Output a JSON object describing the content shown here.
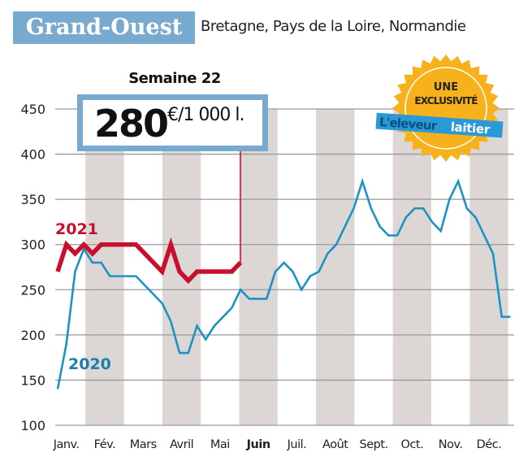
{
  "header": {
    "title": "Grand-Ouest",
    "subtitle": "Bretagne, Pays de la Loire, Normandie"
  },
  "callout": {
    "week_label": "Semaine 22",
    "value": "280",
    "unit": "€/1 000 l."
  },
  "badge": {
    "line1": "UNE",
    "line2": "EXCLUSIVITÉ",
    "brand_part1": "L'eleveur",
    "brand_part2": "laitier"
  },
  "colors": {
    "title_bg": "#78aad0",
    "series_2020": "#1c92c6",
    "series_2021": "#c8102e",
    "band": "#dcd6d4",
    "badge": "#f7b21b"
  },
  "chart_data": {
    "type": "line",
    "title": "",
    "xlabel": "",
    "ylabel": "",
    "ylim": [
      100,
      450
    ],
    "yticks": [
      100,
      150,
      200,
      250,
      300,
      350,
      400,
      450
    ],
    "ytick_labels": [
      "100",
      "150",
      "200",
      "250",
      "300",
      "350",
      "400",
      "450"
    ],
    "x_unit": "week",
    "xlim": [
      1,
      53
    ],
    "months": [
      "Janv.",
      "Fév.",
      "Mars",
      "Avril",
      "Mai",
      "Juin",
      "Juil.",
      "Août",
      "Sept.",
      "Oct.",
      "Nov.",
      "Déc."
    ],
    "highlighted_month": "Juin",
    "grid": "horizontal",
    "alternating_month_bands": true,
    "series": [
      {
        "name": "2020",
        "points": [
          [
            1,
            140
          ],
          [
            2,
            190
          ],
          [
            3,
            270
          ],
          [
            4,
            295
          ],
          [
            5,
            280
          ],
          [
            6,
            280
          ],
          [
            7,
            265
          ],
          [
            10,
            265
          ],
          [
            13,
            235
          ],
          [
            14,
            215
          ],
          [
            15,
            180
          ],
          [
            16,
            180
          ],
          [
            17,
            210
          ],
          [
            18,
            195
          ],
          [
            19,
            210
          ],
          [
            21,
            230
          ],
          [
            22,
            250
          ],
          [
            23,
            240
          ],
          [
            25,
            240
          ],
          [
            26,
            270
          ],
          [
            27,
            280
          ],
          [
            28,
            270
          ],
          [
            29,
            250
          ],
          [
            30,
            265
          ],
          [
            31,
            270
          ],
          [
            32,
            290
          ],
          [
            33,
            300
          ],
          [
            34,
            320
          ],
          [
            35,
            340
          ],
          [
            36,
            370
          ],
          [
            37,
            340
          ],
          [
            38,
            320
          ],
          [
            39,
            310
          ],
          [
            40,
            310
          ],
          [
            41,
            330
          ],
          [
            42,
            340
          ],
          [
            43,
            340
          ],
          [
            44,
            325
          ],
          [
            45,
            315
          ],
          [
            46,
            350
          ],
          [
            47,
            370
          ],
          [
            48,
            340
          ],
          [
            49,
            330
          ],
          [
            51,
            290
          ],
          [
            52,
            220
          ],
          [
            53,
            220
          ]
        ]
      },
      {
        "name": "2021",
        "points": [
          [
            1,
            270
          ],
          [
            2,
            300
          ],
          [
            3,
            290
          ],
          [
            4,
            300
          ],
          [
            5,
            290
          ],
          [
            6,
            300
          ],
          [
            10,
            300
          ],
          [
            13,
            270
          ],
          [
            14,
            300
          ],
          [
            15,
            270
          ],
          [
            16,
            260
          ],
          [
            17,
            270
          ],
          [
            21,
            270
          ],
          [
            22,
            280
          ]
        ]
      }
    ],
    "annotation": {
      "week": 22,
      "value": 280
    }
  }
}
